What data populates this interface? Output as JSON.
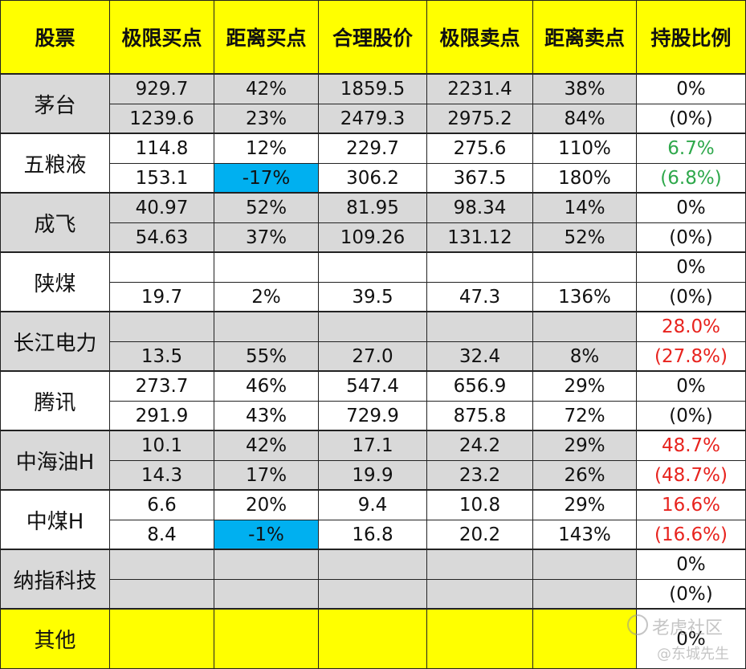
{
  "headers": [
    "股票",
    "极限买点",
    "距离买点",
    "合理股价",
    "极限卖点",
    "距离卖点",
    "持股比例"
  ],
  "colors": {
    "header_bg": "#ffff00",
    "shaded_bg": "#d9d9d9",
    "white_bg": "#ffffff",
    "highlight_bg": "#00b0f0",
    "green": "#2ea84b",
    "red": "#e8231e",
    "border": "#222222"
  },
  "stocks": [
    {
      "name": "茅台",
      "shade": true,
      "ratio_color": "normal",
      "rows": [
        {
          "buy": "929.7",
          "dist_buy": "42%",
          "fair": "1859.5",
          "sell": "2231.4",
          "dist_sell": "38%",
          "ratio": "0%"
        },
        {
          "buy": "1239.6",
          "dist_buy": "23%",
          "fair": "2479.3",
          "sell": "2975.2",
          "dist_sell": "84%",
          "ratio": "(0%)"
        }
      ]
    },
    {
      "name": "五粮液",
      "shade": false,
      "ratio_color": "green",
      "rows": [
        {
          "buy": "114.8",
          "dist_buy": "12%",
          "fair": "229.7",
          "sell": "275.6",
          "dist_sell": "110%",
          "ratio": "6.7%"
        },
        {
          "buy": "153.1",
          "dist_buy": "-17%",
          "fair": "306.2",
          "sell": "367.5",
          "dist_sell": "180%",
          "ratio": "(6.8%)",
          "highlight_dist_buy": true
        }
      ]
    },
    {
      "name": "成飞",
      "shade": true,
      "ratio_color": "normal",
      "rows": [
        {
          "buy": "40.97",
          "dist_buy": "52%",
          "fair": "81.95",
          "sell": "98.34",
          "dist_sell": "14%",
          "ratio": "0%"
        },
        {
          "buy": "54.63",
          "dist_buy": "37%",
          "fair": "109.26",
          "sell": "131.12",
          "dist_sell": "52%",
          "ratio": "(0%)"
        }
      ]
    },
    {
      "name": "陕煤",
      "shade": false,
      "ratio_color": "normal",
      "rows": [
        {
          "buy": "",
          "dist_buy": "",
          "fair": "",
          "sell": "",
          "dist_sell": "",
          "ratio": "0%"
        },
        {
          "buy": "19.7",
          "dist_buy": "2%",
          "fair": "39.5",
          "sell": "47.3",
          "dist_sell": "136%",
          "ratio": "(0%)"
        }
      ]
    },
    {
      "name": "长江电力",
      "shade": true,
      "ratio_color": "red",
      "rows": [
        {
          "buy": "",
          "dist_buy": "",
          "fair": "",
          "sell": "",
          "dist_sell": "",
          "ratio": "28.0%"
        },
        {
          "buy": "13.5",
          "dist_buy": "55%",
          "fair": "27.0",
          "sell": "32.4",
          "dist_sell": "8%",
          "ratio": "(27.8%)"
        }
      ]
    },
    {
      "name": "腾讯",
      "shade": false,
      "ratio_color": "normal",
      "rows": [
        {
          "buy": "273.7",
          "dist_buy": "46%",
          "fair": "547.4",
          "sell": "656.9",
          "dist_sell": "29%",
          "ratio": "0%"
        },
        {
          "buy": "291.9",
          "dist_buy": "43%",
          "fair": "729.9",
          "sell": "875.8",
          "dist_sell": "72%",
          "ratio": "(0%)"
        }
      ]
    },
    {
      "name": "中海油H",
      "shade": true,
      "ratio_color": "red",
      "rows": [
        {
          "buy": "10.1",
          "dist_buy": "42%",
          "fair": "17.1",
          "sell": "24.2",
          "dist_sell": "29%",
          "ratio": "48.7%"
        },
        {
          "buy": "14.3",
          "dist_buy": "17%",
          "fair": "19.9",
          "sell": "23.2",
          "dist_sell": "26%",
          "ratio": "(48.7%)"
        }
      ]
    },
    {
      "name": "中煤H",
      "shade": false,
      "ratio_color": "red",
      "rows": [
        {
          "buy": "6.6",
          "dist_buy": "20%",
          "fair": "9.4",
          "sell": "10.8",
          "dist_sell": "29%",
          "ratio": "16.6%"
        },
        {
          "buy": "8.4",
          "dist_buy": "-1%",
          "fair": "16.8",
          "sell": "20.2",
          "dist_sell": "143%",
          "ratio": "(16.6%)",
          "highlight_dist_buy": true
        }
      ]
    },
    {
      "name": "纳指科技",
      "shade": true,
      "ratio_color": "normal",
      "rows": [
        {
          "buy": "",
          "dist_buy": "",
          "fair": "",
          "sell": "",
          "dist_sell": "",
          "ratio": "0%"
        },
        {
          "buy": "",
          "dist_buy": "",
          "fair": "",
          "sell": "",
          "dist_sell": "",
          "ratio": "(0%)"
        }
      ]
    }
  ],
  "footer": {
    "name": "其他",
    "ratio": "0%"
  },
  "watermark": {
    "line1": "老虎社区",
    "line2": "@东城先生"
  }
}
